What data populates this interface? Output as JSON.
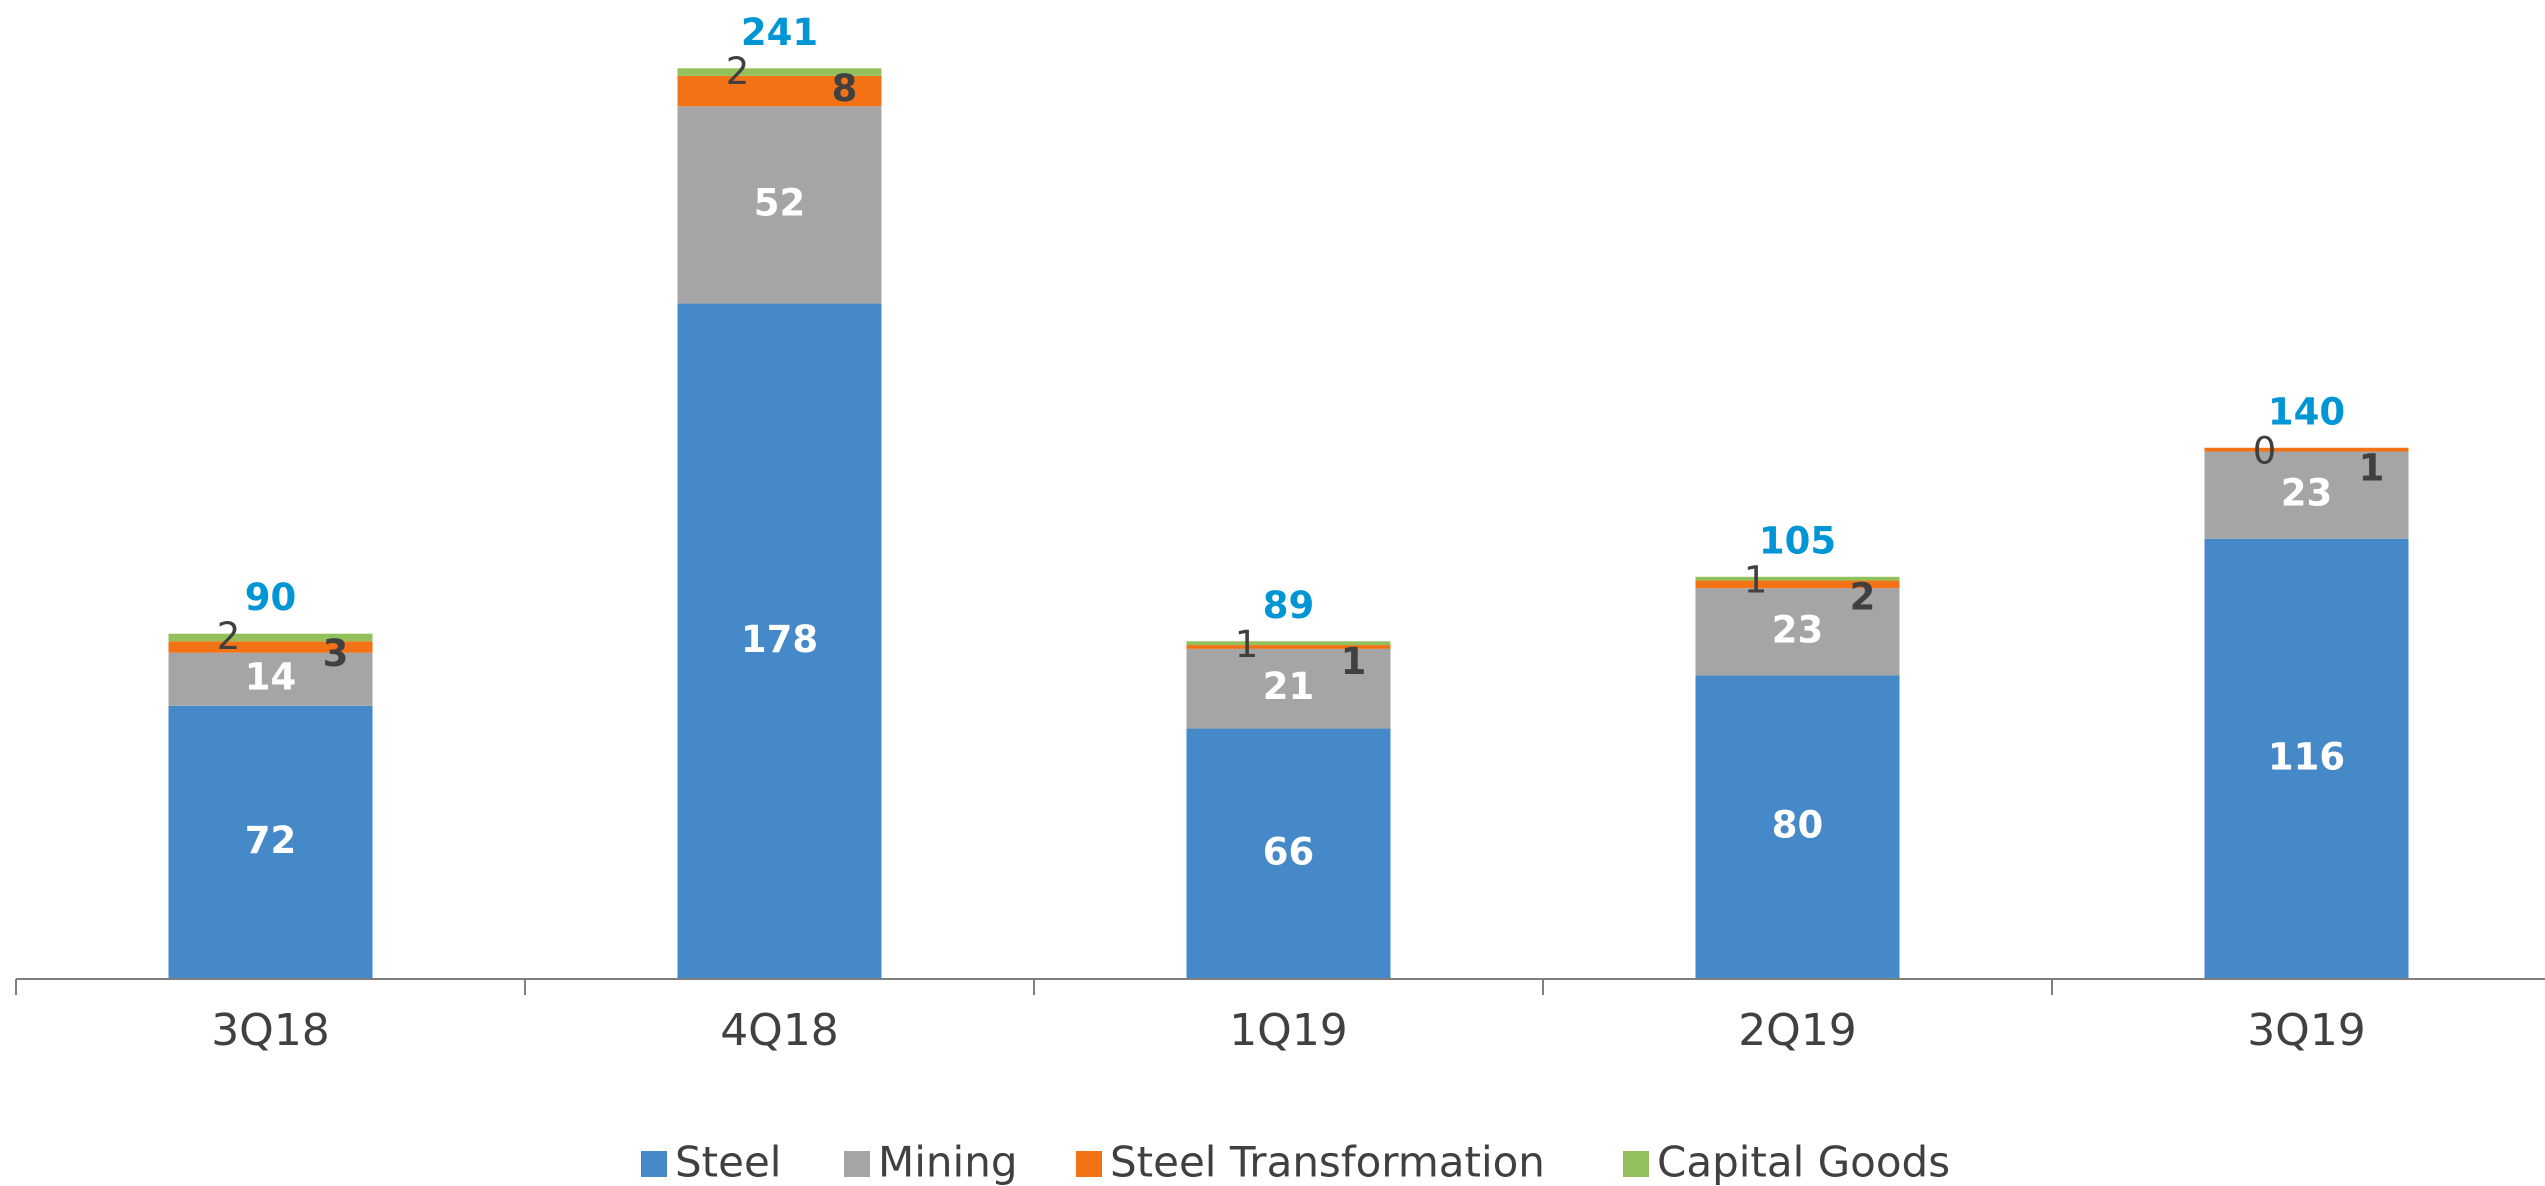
{
  "chart_data": {
    "type": "stacked_bar",
    "categories": [
      "3Q18",
      "4Q18",
      "1Q19",
      "2Q19",
      "3Q19"
    ],
    "series": [
      {
        "name": "Steel",
        "color": "#4589c8",
        "values": [
          72,
          178,
          66,
          80,
          116
        ]
      },
      {
        "name": "Mining",
        "color": "#a5a5a5",
        "values": [
          14,
          52,
          21,
          23,
          23
        ]
      },
      {
        "name": "Steel Transformation",
        "color": "#f47216",
        "values": [
          3,
          8,
          1,
          2,
          1
        ]
      },
      {
        "name": "Capital Goods",
        "color": "#93c05b",
        "values": [
          2,
          2,
          1,
          1,
          0
        ]
      }
    ],
    "totals": [
      90,
      241,
      89,
      105,
      140
    ],
    "ylim": [
      0,
      258
    ],
    "legend": "bottom"
  }
}
